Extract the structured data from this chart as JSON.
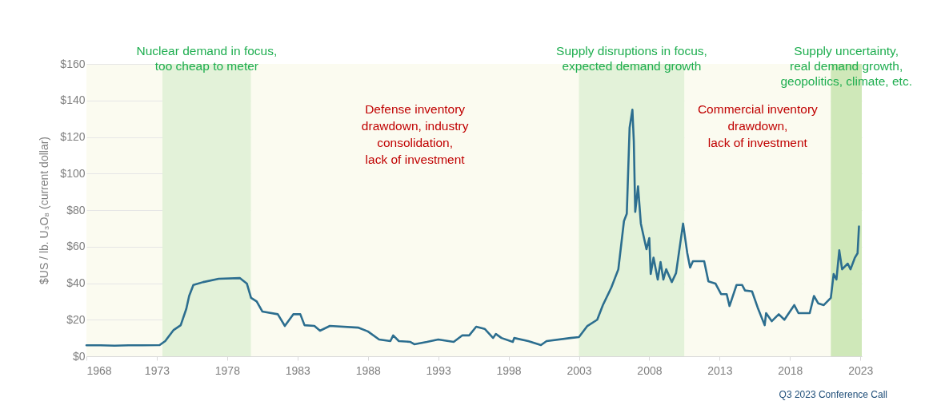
{
  "chart_data": {
    "type": "line",
    "ylabel": "$US / lb. U₃O₈ (current dollar)",
    "x": [
      1968.0,
      1969.0,
      1970.0,
      1971.0,
      1972.0,
      1973.2,
      1973.6,
      1974.2,
      1974.7,
      1975.1,
      1975.3,
      1975.6,
      1976.3,
      1977.4,
      1978.9,
      1979.4,
      1979.7,
      1980.1,
      1980.5,
      1981.6,
      1982.1,
      1982.7,
      1983.2,
      1983.5,
      1984.2,
      1984.6,
      1985.3,
      1987.3,
      1988.0,
      1988.8,
      1989.6,
      1989.8,
      1990.2,
      1991.0,
      1991.3,
      1992.2,
      1993.0,
      1994.1,
      1994.7,
      1995.2,
      1995.7,
      1996.3,
      1996.9,
      1997.1,
      1997.5,
      1998.3,
      1998.4,
      1999.4,
      2000.3,
      2000.7,
      2002.4,
      2003.0,
      2003.6,
      2004.3,
      2004.7,
      2005.3,
      2005.8,
      2006.2,
      2006.4,
      2006.6,
      2006.8,
      2006.9,
      2007.0,
      2007.2,
      2007.4,
      2007.8,
      2008.0,
      2008.1,
      2008.3,
      2008.6,
      2008.8,
      2009.0,
      2009.2,
      2009.6,
      2009.9,
      2010.4,
      2010.7,
      2010.9,
      2011.1,
      2011.9,
      2012.2,
      2012.7,
      2013.1,
      2013.5,
      2013.7,
      2014.2,
      2014.6,
      2014.8,
      2015.3,
      2015.7,
      2016.2,
      2016.3,
      2016.7,
      2017.2,
      2017.6,
      2018.3,
      2018.6,
      2019.4,
      2019.7,
      2020.0,
      2020.4,
      2020.9,
      2021.1,
      2021.3,
      2021.5,
      2021.7,
      2022.1,
      2022.3,
      2022.6,
      2022.8,
      2022.9
    ],
    "series": [
      {
        "color": "#2c6e8f",
        "values": [
          6,
          6,
          5.8,
          6,
          6,
          6.1,
          8.3,
          14.4,
          17,
          26,
          33,
          39,
          40.6,
          42.4,
          42.8,
          39.8,
          32,
          30,
          24.5,
          23,
          16.6,
          23,
          23,
          17,
          16.6,
          14,
          16.6,
          15.7,
          13.6,
          9.2,
          8.3,
          11.4,
          8.3,
          7.9,
          6.6,
          7.9,
          9.2,
          7.9,
          11.4,
          11.4,
          16.2,
          15,
          10,
          12.2,
          10,
          7.9,
          10,
          8.3,
          6.1,
          8.3,
          10,
          10.5,
          16.6,
          20,
          28,
          37.6,
          47.6,
          74,
          78,
          125,
          135,
          117.6,
          79,
          93,
          72.6,
          58.6,
          64.7,
          45,
          54,
          42,
          51.6,
          42,
          47.6,
          40.6,
          45.5,
          72.6,
          56.4,
          48.5,
          52,
          52,
          41,
          39.8,
          34,
          34,
          27.5,
          39,
          39,
          36,
          35.5,
          26.7,
          17,
          23.6,
          19.2,
          23,
          20,
          28,
          23.6,
          23.6,
          33,
          29,
          28,
          32,
          45,
          42,
          58,
          47.6,
          50.7,
          47.6,
          53.8,
          56.4,
          71
        ]
      }
    ],
    "xlim": [
      1968,
      2023.1
    ],
    "xticks": [
      1968,
      1973,
      1978,
      1983,
      1988,
      1993,
      1998,
      2003,
      2008,
      2013,
      2018,
      2023
    ],
    "ylim": [
      0,
      160
    ],
    "yticks": [
      {
        "value": 0,
        "label": "$0"
      },
      {
        "value": 20,
        "label": "$20"
      },
      {
        "value": 40,
        "label": "$40"
      },
      {
        "value": 60,
        "label": "$60"
      },
      {
        "value": 80,
        "label": "$80"
      },
      {
        "value": 100,
        "label": "$100"
      },
      {
        "value": 120,
        "label": "$120"
      },
      {
        "value": 140,
        "label": "$140"
      },
      {
        "value": 160,
        "label": "$160"
      }
    ],
    "grid": "y",
    "line_style": "solid",
    "bands": [
      {
        "axis": "x",
        "from": 1973.4,
        "to": 1979.7,
        "label": "Nuclear demand in focus,\ntoo cheap to meter",
        "color": "#e3f2d9"
      },
      {
        "axis": "x",
        "from": 1979.7,
        "to": 2003.0,
        "label": "Defense inventory\ndrawdown, industry\nconsolidation,\nlack of investment",
        "color": "#fbfbf0"
      },
      {
        "axis": "x",
        "from": 2003.0,
        "to": 2010.5,
        "label": "Supply disruptions in focus,\nexpected demand growth",
        "color": "#e3f2d9"
      },
      {
        "axis": "x",
        "from": 2010.5,
        "to": 2020.9,
        "label": "Commercial inventory\ndrawdown,\nlack of investment",
        "color": "#fbfbf0"
      },
      {
        "axis": "x",
        "from": 2020.9,
        "to": 2023.1,
        "label": "Supply uncertainty,\nreal demand growth,\ngeopolitics, climate, etc.",
        "color": "#cfe8b9"
      }
    ],
    "annotations": [
      "Q3 2023 Conference Call"
    ]
  }
}
